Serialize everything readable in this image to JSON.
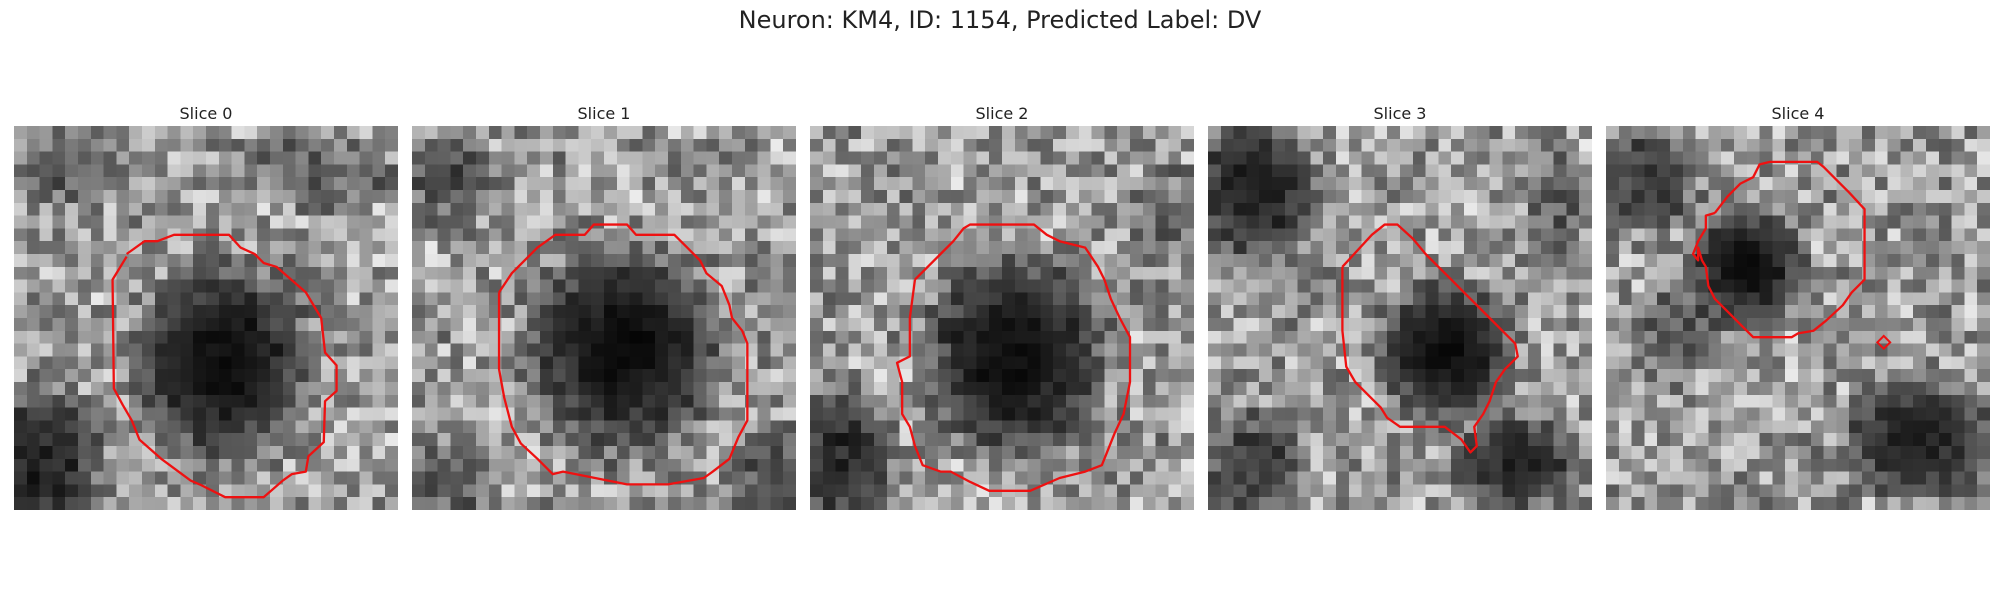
{
  "figure": {
    "title": "Neuron: KM4, ID: 1154, Predicted Label: DV"
  },
  "panels": [
    {
      "title": "Slice 0"
    },
    {
      "title": "Slice 1"
    },
    {
      "title": "Slice 2"
    },
    {
      "title": "Slice 3"
    },
    {
      "title": "Slice 4"
    }
  ],
  "colors": {
    "contour": "#ee1111",
    "background": "#ffffff"
  }
}
